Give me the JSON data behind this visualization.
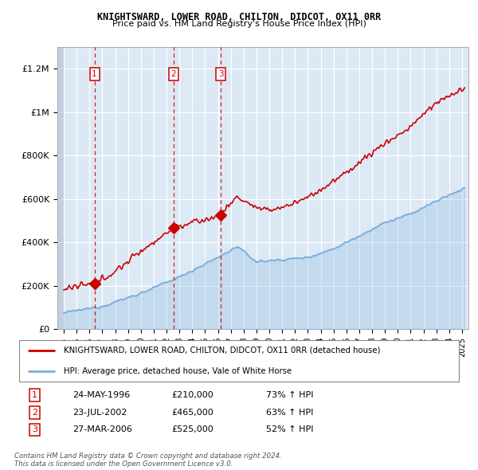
{
  "title1": "KNIGHTSWARD, LOWER ROAD, CHILTON, DIDCOT, OX11 0RR",
  "title2": "Price paid vs. HM Land Registry's House Price Index (HPI)",
  "ylabel_ticks": [
    "£0",
    "£200K",
    "£400K",
    "£600K",
    "£800K",
    "£1M",
    "£1.2M"
  ],
  "ytick_values": [
    0,
    200000,
    400000,
    600000,
    800000,
    1000000,
    1200000
  ],
  "ylim": [
    0,
    1300000
  ],
  "xlim_start": 1993.5,
  "xlim_end": 2025.5,
  "sale_dates": [
    1996.39,
    2002.55,
    2006.23
  ],
  "sale_prices": [
    210000,
    465000,
    525000
  ],
  "sale_labels": [
    "1",
    "2",
    "3"
  ],
  "sale_color": "#cc0000",
  "hpi_color": "#7aadda",
  "legend_sale_label": "KNIGHTSWARD, LOWER ROAD, CHILTON, DIDCOT, OX11 0RR (detached house)",
  "legend_hpi_label": "HPI: Average price, detached house, Vale of White Horse",
  "table_rows": [
    [
      "1",
      "24-MAY-1996",
      "£210,000",
      "73% ↑ HPI"
    ],
    [
      "2",
      "23-JUL-2002",
      "£465,000",
      "63% ↑ HPI"
    ],
    [
      "3",
      "27-MAR-2006",
      "£525,000",
      "52% ↑ HPI"
    ]
  ],
  "footer_text": "Contains HM Land Registry data © Crown copyright and database right 2024.\nThis data is licensed under the Open Government Licence v3.0.",
  "plot_bg": "#dce9f5"
}
